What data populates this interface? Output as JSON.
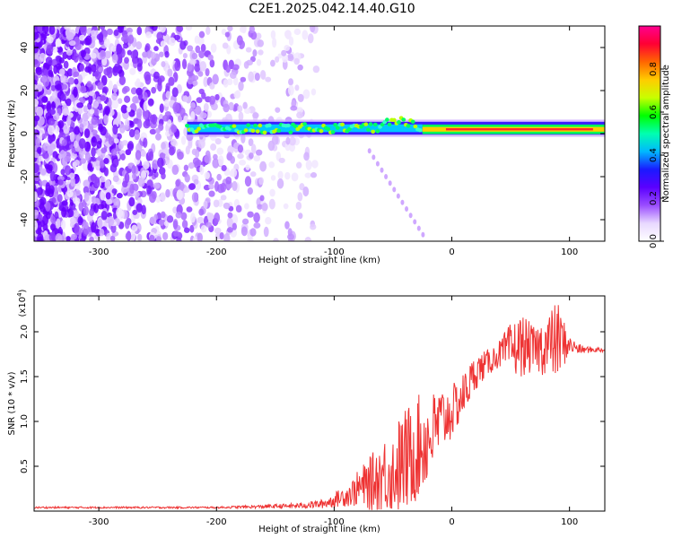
{
  "title": "C2E1.2025.042.14.40.G10",
  "chart_data": [
    {
      "type": "heatmap",
      "name": "spectrogram",
      "xlabel": "Height of straight line (km)",
      "ylabel": "Frequency (Hz)",
      "xlim": [
        -355,
        130
      ],
      "ylim": [
        -50,
        50
      ],
      "xticks": [
        -300,
        -200,
        -100,
        0,
        100
      ],
      "xtick_labels": [
        "-300",
        "-200",
        "-100",
        "0",
        "100"
      ],
      "yticks": [
        -40,
        -20,
        0,
        20,
        40
      ],
      "ytick_labels": [
        "-40",
        "-20",
        "0",
        "20",
        "40"
      ],
      "colorbar": {
        "label": "Normalized spectral amplitude",
        "range": [
          0,
          1
        ],
        "ticks": [
          0.0,
          0.2,
          0.4,
          0.6,
          0.8
        ],
        "tick_labels": [
          "0.0",
          "0.2",
          "0.4",
          "0.6",
          "0.8"
        ],
        "colors": [
          "#ffffff",
          "#e8d8ff",
          "#9a4dff",
          "#5b00ff",
          "#1a1aff",
          "#00b8ff",
          "#00ffb0",
          "#00ff00",
          "#c8ff00",
          "#ffcc00",
          "#ff6600",
          "#ff0033",
          "#ff0090"
        ]
      },
      "signal_band": {
        "x_start": -225,
        "x_end": 130,
        "center_hz": 2.5,
        "width_hz": 8,
        "strong_segment": {
          "x_start": -25,
          "x_end": 130,
          "center_hz": 2
        }
      }
    },
    {
      "type": "line",
      "name": "snr",
      "xlabel": "Height of straight line (km)",
      "ylabel": "SNR (10 * v/v)",
      "scale_label": "(x10",
      "scale_exponent": "4",
      "xlim": [
        -355,
        130
      ],
      "ylim": [
        0,
        2.4
      ],
      "xticks": [
        -300,
        -200,
        -100,
        0,
        100
      ],
      "xtick_labels": [
        "-300",
        "-200",
        "-100",
        "0",
        "100"
      ],
      "yticks": [
        0.5,
        1.0,
        1.5,
        2.0
      ],
      "ytick_labels": [
        "0.5",
        "1.0",
        "1.5",
        "2.0"
      ],
      "series": [
        {
          "name": "SNR",
          "color": "#ee3333",
          "x": [
            -355,
            -300,
            -250,
            -200,
            -160,
            -130,
            -110,
            -100,
            -95,
            -85,
            -80,
            -70,
            -60,
            -50,
            -40,
            -30,
            -20,
            -10,
            0,
            10,
            20,
            30,
            40,
            50,
            60,
            70,
            80,
            90,
            100,
            110,
            120,
            130
          ],
          "y": [
            0.04,
            0.04,
            0.04,
            0.04,
            0.05,
            0.06,
            0.08,
            0.12,
            0.15,
            0.2,
            0.25,
            0.3,
            0.4,
            0.45,
            0.55,
            0.7,
            0.8,
            1.0,
            1.1,
            1.3,
            1.55,
            1.65,
            1.75,
            1.8,
            1.85,
            1.8,
            1.85,
            1.9,
            1.85,
            1.8,
            1.8,
            1.8
          ],
          "noise_amplitude": [
            0.01,
            0.01,
            0.01,
            0.01,
            0.02,
            0.03,
            0.05,
            0.08,
            0.1,
            0.15,
            0.2,
            0.3,
            0.4,
            0.5,
            0.6,
            0.6,
            0.5,
            0.4,
            0.3,
            0.25,
            0.2,
            0.15,
            0.15,
            0.3,
            0.35,
            0.25,
            0.35,
            0.45,
            0.1,
            0.05,
            0.03,
            0.03
          ]
        }
      ]
    }
  ]
}
